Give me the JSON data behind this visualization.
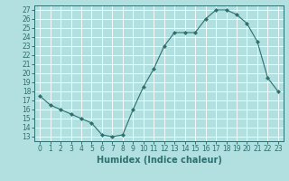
{
  "x": [
    0,
    1,
    2,
    3,
    4,
    5,
    6,
    7,
    8,
    9,
    10,
    11,
    12,
    13,
    14,
    15,
    16,
    17,
    18,
    19,
    20,
    21,
    22,
    23
  ],
  "y": [
    17.5,
    16.5,
    16.0,
    15.5,
    15.0,
    14.5,
    13.2,
    13.0,
    13.2,
    16.0,
    18.5,
    20.5,
    23.0,
    24.5,
    24.5,
    24.5,
    26.0,
    27.0,
    27.0,
    26.5,
    25.5,
    23.5,
    19.5,
    18.0
  ],
  "xlabel": "Humidex (Indice chaleur)",
  "xlim": [
    -0.5,
    23.5
  ],
  "ylim": [
    12.5,
    27.5
  ],
  "yticks": [
    13,
    14,
    15,
    16,
    17,
    18,
    19,
    20,
    21,
    22,
    23,
    24,
    25,
    26,
    27
  ],
  "xticks": [
    0,
    1,
    2,
    3,
    4,
    5,
    6,
    7,
    8,
    9,
    10,
    11,
    12,
    13,
    14,
    15,
    16,
    17,
    18,
    19,
    20,
    21,
    22,
    23
  ],
  "line_color": "#2d7070",
  "marker_color": "#2d7070",
  "bg_color": "#b2dfdf",
  "grid_color": "#ffffff",
  "tick_fontsize": 5.5,
  "xlabel_fontsize": 7.0
}
